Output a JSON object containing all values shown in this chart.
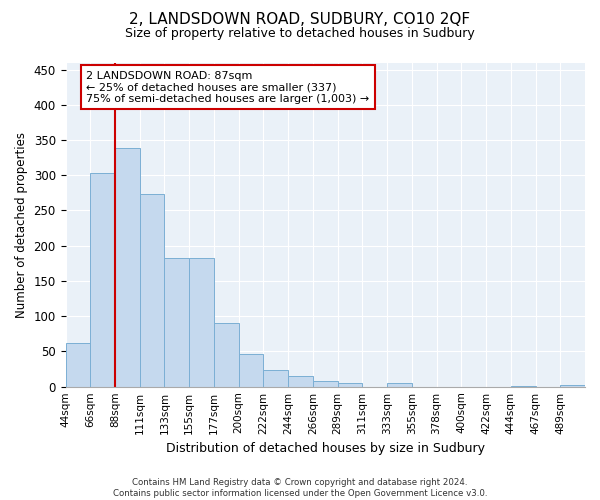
{
  "title1": "2, LANDSDOWN ROAD, SUDBURY, CO10 2QF",
  "title2": "Size of property relative to detached houses in Sudbury",
  "xlabel": "Distribution of detached houses by size in Sudbury",
  "ylabel": "Number of detached properties",
  "bar_color": "#c5d9ee",
  "bar_edge_color": "#7bafd4",
  "bg_color": "#eaf1f8",
  "grid_color": "#ffffff",
  "annotation_box_color": "#cc0000",
  "vline_color": "#cc0000",
  "vline_x_idx": 2,
  "categories": [
    "44sqm",
    "66sqm",
    "88sqm",
    "111sqm",
    "133sqm",
    "155sqm",
    "177sqm",
    "200sqm",
    "222sqm",
    "244sqm",
    "266sqm",
    "289sqm",
    "311sqm",
    "333sqm",
    "355sqm",
    "378sqm",
    "400sqm",
    "422sqm",
    "444sqm",
    "467sqm",
    "489sqm"
  ],
  "values": [
    62,
    303,
    338,
    273,
    182,
    182,
    90,
    46,
    24,
    15,
    8,
    5,
    0,
    5,
    0,
    0,
    0,
    0,
    1,
    0,
    2
  ],
  "annotation_line1": "2 LANDSDOWN ROAD: 87sqm",
  "annotation_line2": "← 25% of detached houses are smaller (337)",
  "annotation_line3": "75% of semi-detached houses are larger (1,003) →",
  "ylim": [
    0,
    460
  ],
  "yticks": [
    0,
    50,
    100,
    150,
    200,
    250,
    300,
    350,
    400,
    450
  ],
  "footnote": "Contains HM Land Registry data © Crown copyright and database right 2024.\nContains public sector information licensed under the Open Government Licence v3.0."
}
